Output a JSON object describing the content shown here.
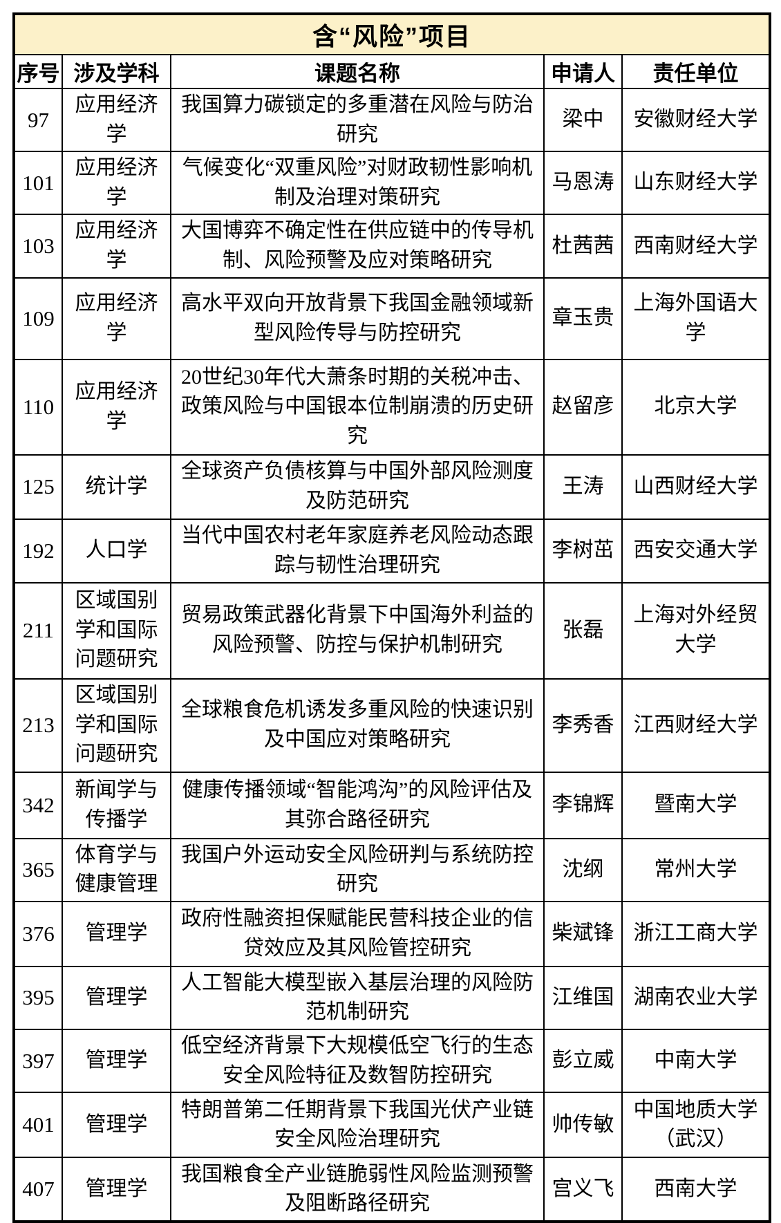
{
  "title": "含“风险”项目",
  "colors": {
    "title_background": "#FCF1C9",
    "border": "#000000",
    "text": "#000000",
    "page_background": "#FFFFFF"
  },
  "table": {
    "columns": [
      "序号",
      "涉及学科",
      "课题名称",
      "申请人",
      "责任单位"
    ],
    "rows": [
      {
        "no": "97",
        "discipline": "应用经济学",
        "project": "我国算力碳锁定的多重潜在风险与防治研究",
        "applicant": "梁中",
        "institution": "安徽财经大学"
      },
      {
        "no": "101",
        "discipline": "应用经济学",
        "project": "气候变化“双重风险”对财政韧性影响机制及治理对策研究",
        "applicant": "马恩涛",
        "institution": "山东财经大学"
      },
      {
        "no": "103",
        "discipline": "应用经济学",
        "project": "大国博弈不确定性在供应链中的传导机制、风险预警及应对策略研究",
        "applicant": "杜茜茜",
        "institution": "西南财经大学"
      },
      {
        "no": "109",
        "discipline": "应用经济学",
        "project": "高水平双向开放背景下我国金融领域新型风险传导与防控研究",
        "applicant": "章玉贵",
        "institution": "上海外国语大学"
      },
      {
        "no": "110",
        "discipline": "应用经济学",
        "project": "20世纪30年代大萧条时期的关税冲击、政策风险与中国银本位制崩溃的历史研究",
        "applicant": "赵留彦",
        "institution": "北京大学"
      },
      {
        "no": "125",
        "discipline": "统计学",
        "project": "全球资产负债核算与中国外部风险测度及防范研究",
        "applicant": "王涛",
        "institution": "山西财经大学"
      },
      {
        "no": "192",
        "discipline": "人口学",
        "project": "当代中国农村老年家庭养老风险动态跟踪与韧性治理研究",
        "applicant": "李树茁",
        "institution": "西安交通大学"
      },
      {
        "no": "211",
        "discipline": "区域国别学和国际问题研究",
        "project": "贸易政策武器化背景下中国海外利益的风险预警、防控与保护机制研究",
        "applicant": "张磊",
        "institution": "上海对外经贸大学"
      },
      {
        "no": "213",
        "discipline": "区域国别学和国际问题研究",
        "project": "全球粮食危机诱发多重风险的快速识别及中国应对策略研究",
        "applicant": "李秀香",
        "institution": "江西财经大学"
      },
      {
        "no": "342",
        "discipline": "新闻学与传播学",
        "project": "健康传播领域“智能鸿沟”的风险评估及其弥合路径研究",
        "applicant": "李锦辉",
        "institution": "暨南大学"
      },
      {
        "no": "365",
        "discipline": "体育学与健康管理",
        "project": "我国户外运动安全风险研判与系统防控研究",
        "applicant": "沈纲",
        "institution": "常州大学"
      },
      {
        "no": "376",
        "discipline": "管理学",
        "project": "政府性融资担保赋能民营科技企业的信贷效应及其风险管控研究",
        "applicant": "柴斌锋",
        "institution": "浙江工商大学"
      },
      {
        "no": "395",
        "discipline": "管理学",
        "project": "人工智能大模型嵌入基层治理的风险防范机制研究",
        "applicant": "江维国",
        "institution": "湖南农业大学"
      },
      {
        "no": "397",
        "discipline": "管理学",
        "project": "低空经济背景下大规模低空飞行的生态安全风险特征及数智防控研究",
        "applicant": "彭立威",
        "institution": "中南大学"
      },
      {
        "no": "401",
        "discipline": "管理学",
        "project": "特朗普第二任期背景下我国光伏产业链安全风险治理研究",
        "applicant": "帅传敏",
        "institution": "中国地质大学（武汉）"
      },
      {
        "no": "407",
        "discipline": "管理学",
        "project": "我国粮食全产业链脆弱性风险监测预警及阻断路径研究",
        "applicant": "宫义飞",
        "institution": "西南大学"
      }
    ]
  }
}
